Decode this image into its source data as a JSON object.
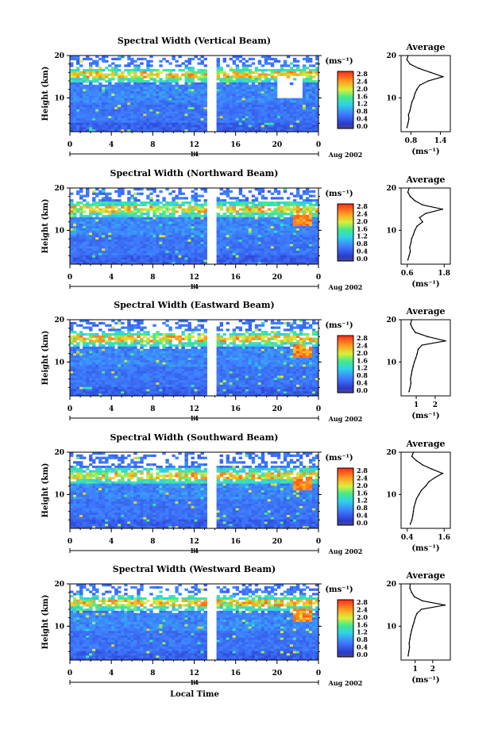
{
  "figure": {
    "date_label": "Aug 2002",
    "day_label": "14",
    "xlabel": "Local Time"
  },
  "colorbar": {
    "unit": "(ms⁻¹)",
    "ticks": [
      "2.8",
      "2.4",
      "2.0",
      "1.6",
      "1.2",
      "0.8",
      "0.4",
      "0.0"
    ]
  },
  "chart_data": [
    {
      "type": "heatmap",
      "title": "Spectral Width (Vertical Beam)",
      "xlabel": "Local Time",
      "ylabel": "Height (km)",
      "x_ticks": [
        "0",
        "4",
        "8",
        "12",
        "16",
        "20",
        "0"
      ],
      "xlim": [
        0,
        24
      ],
      "y_ticks": [
        "10",
        "20"
      ],
      "ylim": [
        2,
        20
      ],
      "color_range": [
        0.0,
        2.8
      ],
      "data_gap_hours": [
        13.4,
        14.0
      ],
      "tropopause_km": 15.5,
      "average_profile": {
        "title": "Average",
        "xlabel": "(ms⁻¹)",
        "x_ticks": [
          "0.8",
          "1.4"
        ],
        "xlim": [
          0.6,
          1.6
        ],
        "heights": [
          3,
          4,
          5,
          6,
          7,
          8,
          9,
          10,
          11,
          12,
          13,
          14,
          15,
          16,
          17,
          18,
          19,
          20
        ],
        "values": [
          0.72,
          0.74,
          0.76,
          0.75,
          0.78,
          0.8,
          0.82,
          0.86,
          0.88,
          0.92,
          0.98,
          1.15,
          1.45,
          1.2,
          0.95,
          0.78,
          0.72,
          0.74
        ]
      }
    },
    {
      "type": "heatmap",
      "title": "Spectral Width (Northward Beam)",
      "xlabel": "Local Time",
      "ylabel": "Height (km)",
      "x_ticks": [
        "0",
        "4",
        "8",
        "12",
        "16",
        "20",
        "0"
      ],
      "xlim": [
        0,
        24
      ],
      "y_ticks": [
        "10",
        "20"
      ],
      "ylim": [
        2,
        20
      ],
      "color_range": [
        0.0,
        2.8
      ],
      "data_gap_hours": [
        13.4,
        14.0
      ],
      "tropopause_km": 15.0,
      "average_profile": {
        "title": "Average",
        "xlabel": "(ms⁻¹)",
        "x_ticks": [
          "0.6",
          "1.8"
        ],
        "xlim": [
          0.4,
          2.0
        ],
        "heights": [
          3,
          4,
          5,
          6,
          7,
          8,
          9,
          10,
          11,
          12,
          13,
          14,
          15,
          16,
          17,
          18,
          19,
          20
        ],
        "values": [
          0.62,
          0.66,
          0.7,
          0.68,
          0.72,
          0.74,
          0.8,
          0.85,
          0.92,
          1.1,
          1.0,
          1.2,
          1.75,
          1.1,
          0.85,
          0.7,
          0.62,
          0.66
        ]
      }
    },
    {
      "type": "heatmap",
      "title": "Spectral Width (Eastward Beam)",
      "xlabel": "Local Time",
      "ylabel": "Height (km)",
      "x_ticks": [
        "0",
        "4",
        "8",
        "12",
        "16",
        "20",
        "0"
      ],
      "xlim": [
        0,
        24
      ],
      "y_ticks": [
        "10",
        "20"
      ],
      "ylim": [
        2,
        20
      ],
      "color_range": [
        0.0,
        2.8
      ],
      "data_gap_hours": [
        13.4,
        14.0
      ],
      "tropopause_km": 15.5,
      "average_profile": {
        "title": "Average",
        "xlabel": "(ms⁻¹)",
        "x_ticks": [
          "1",
          "2"
        ],
        "xlim": [
          0.2,
          2.8
        ],
        "heights": [
          3,
          4,
          5,
          6,
          7,
          8,
          9,
          10,
          11,
          12,
          13,
          14,
          15,
          16,
          17,
          18,
          19,
          20
        ],
        "values": [
          0.62,
          0.68,
          0.72,
          0.7,
          0.74,
          0.78,
          0.84,
          0.9,
          0.98,
          1.05,
          1.1,
          1.3,
          2.55,
          1.6,
          0.95,
          0.8,
          0.7,
          0.76
        ]
      }
    },
    {
      "type": "heatmap",
      "title": "Spectral Width (Southward Beam)",
      "xlabel": "Local Time",
      "ylabel": "Height (km)",
      "x_ticks": [
        "0",
        "4",
        "8",
        "12",
        "16",
        "20",
        "0"
      ],
      "xlim": [
        0,
        24
      ],
      "y_ticks": [
        "10",
        "20"
      ],
      "ylim": [
        2,
        20
      ],
      "color_range": [
        0.0,
        2.8
      ],
      "data_gap_hours": [
        13.4,
        14.0
      ],
      "tropopause_km": 14.5,
      "average_profile": {
        "title": "Average",
        "xlabel": "(ms⁻¹)",
        "x_ticks": [
          "0.4",
          "1.6"
        ],
        "xlim": [
          0.2,
          1.8
        ],
        "heights": [
          3,
          4,
          5,
          6,
          7,
          8,
          9,
          10,
          11,
          12,
          13,
          14,
          15,
          16,
          17,
          18,
          19,
          20
        ],
        "values": [
          0.5,
          0.55,
          0.58,
          0.6,
          0.62,
          0.66,
          0.7,
          0.78,
          0.86,
          1.0,
          1.1,
          1.3,
          1.55,
          1.2,
          0.9,
          0.7,
          0.55,
          0.6
        ]
      }
    },
    {
      "type": "heatmap",
      "title": "Spectral Width (Westward Beam)",
      "xlabel": "Local Time",
      "ylabel": "Height (km)",
      "x_ticks": [
        "0",
        "4",
        "8",
        "12",
        "16",
        "20",
        "0"
      ],
      "xlim": [
        0,
        24
      ],
      "y_ticks": [
        "10",
        "20"
      ],
      "ylim": [
        2,
        20
      ],
      "color_range": [
        0.0,
        2.8
      ],
      "data_gap_hours": [
        13.4,
        14.0
      ],
      "tropopause_km": 15.5,
      "average_profile": {
        "title": "Average",
        "xlabel": "(ms⁻¹)",
        "x_ticks": [
          "1",
          "2"
        ],
        "xlim": [
          0.2,
          3.0
        ],
        "heights": [
          3,
          4,
          5,
          6,
          7,
          8,
          9,
          10,
          11,
          12,
          13,
          14,
          15,
          16,
          17,
          18,
          19,
          20
        ],
        "values": [
          0.6,
          0.64,
          0.68,
          0.66,
          0.7,
          0.74,
          0.8,
          0.86,
          0.94,
          1.0,
          1.1,
          1.35,
          2.7,
          1.4,
          0.95,
          0.8,
          0.7,
          0.72
        ]
      }
    }
  ]
}
